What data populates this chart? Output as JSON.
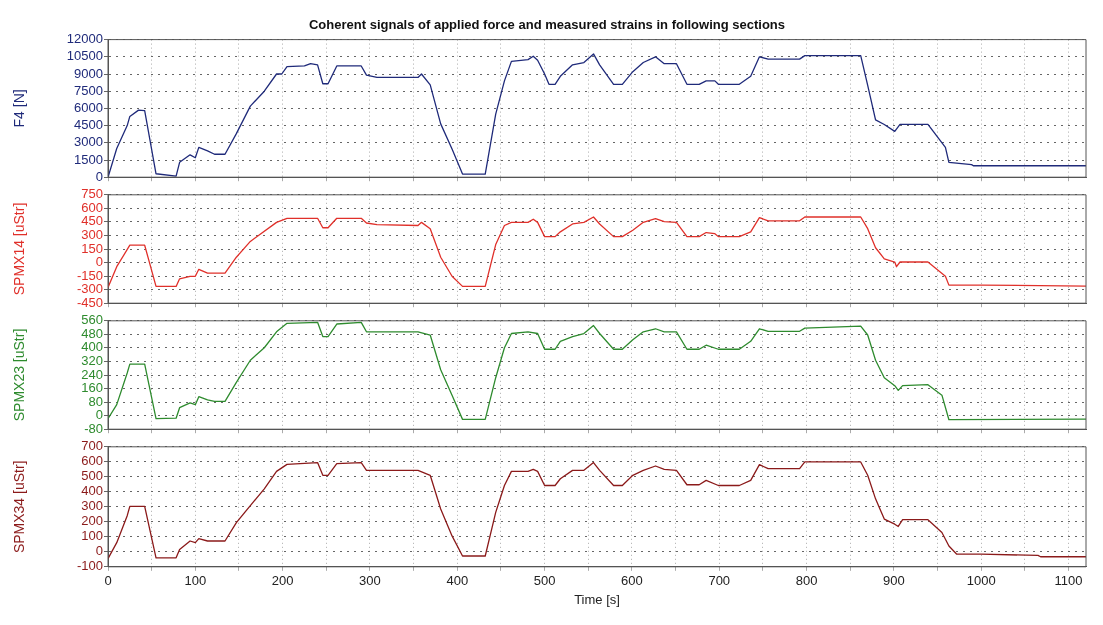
{
  "chart_data": [
    {
      "type": "line",
      "title": "Coherent signals of applied force and measured strains in following sections",
      "ylabel": "F4 [N]",
      "tick_labels": "y",
      "grid": true,
      "marker": "none",
      "x": [
        0,
        10,
        22,
        25,
        35,
        42,
        55,
        78,
        82,
        94,
        100,
        104,
        114,
        122,
        134,
        147,
        163,
        179,
        193,
        199,
        205,
        225,
        232,
        240,
        246,
        252,
        262,
        290,
        296,
        308,
        355,
        359,
        369,
        381,
        394,
        406,
        432,
        444,
        454,
        462,
        481,
        487,
        492,
        500,
        505,
        512,
        518,
        532,
        545,
        556,
        563,
        579,
        589,
        601,
        613,
        627,
        637,
        651,
        663,
        677,
        685,
        695,
        699,
        723,
        736,
        746,
        756,
        792,
        798,
        862,
        870,
        879,
        889,
        901,
        907,
        939,
        959,
        963,
        989,
        991,
        1120
      ],
      "series": [
        {
          "color": "#1f2a7a",
          "values": [
            0,
            2500,
            4500,
            5300,
            5850,
            5800,
            300,
            100,
            1300,
            1950,
            1700,
            2600,
            2300,
            2000,
            2000,
            3800,
            6200,
            7500,
            9000,
            9000,
            9650,
            9700,
            9900,
            9800,
            8150,
            8150,
            9700,
            9700,
            8900,
            8700,
            8700,
            9000,
            8050,
            4650,
            2450,
            270,
            270,
            5500,
            8400,
            10100,
            10250,
            10550,
            10200,
            9000,
            8100,
            8100,
            8800,
            9800,
            10000,
            10750,
            9800,
            8100,
            8100,
            9200,
            10000,
            10500,
            9900,
            9900,
            8100,
            8100,
            8400,
            8400,
            8100,
            8100,
            8800,
            10500,
            10300,
            10300,
            10600,
            10600,
            8000,
            5000,
            4600,
            4000,
            4600,
            4600,
            2600,
            1300,
            1100,
            1000,
            1000
          ]
        }
      ],
      "xlim": [
        0,
        1120
      ],
      "xticks": [
        0,
        {
          "value": 50,
          "label": null
        },
        100,
        {
          "value": 150,
          "label": null
        },
        200,
        {
          "value": 250,
          "label": null
        },
        300,
        {
          "value": 350,
          "label": null
        },
        400,
        {
          "value": 450,
          "label": null
        },
        500,
        {
          "value": 550,
          "label": null
        },
        600,
        {
          "value": 650,
          "label": null
        },
        700,
        {
          "value": 750,
          "label": null
        },
        800,
        {
          "value": 850,
          "label": null
        },
        900,
        {
          "value": 950,
          "label": null
        },
        1000,
        {
          "value": 1050,
          "label": null
        },
        1100
      ],
      "ylim": [
        0,
        12000
      ],
      "yticks": [
        0,
        1500,
        3000,
        4500,
        6000,
        7500,
        9000,
        10500,
        12000
      ]
    },
    {
      "type": "line",
      "ylabel": "SPMX14 [uStr]",
      "tick_labels": "y",
      "grid": true,
      "marker": "none",
      "x": [
        0,
        10,
        25,
        42,
        55,
        78,
        82,
        94,
        100,
        104,
        114,
        134,
        147,
        163,
        193,
        205,
        240,
        246,
        252,
        262,
        290,
        296,
        308,
        355,
        359,
        369,
        381,
        394,
        406,
        432,
        444,
        454,
        462,
        481,
        487,
        492,
        500,
        512,
        518,
        532,
        545,
        556,
        563,
        579,
        589,
        601,
        613,
        627,
        637,
        651,
        663,
        677,
        685,
        695,
        699,
        723,
        736,
        746,
        756,
        792,
        798,
        862,
        870,
        879,
        889,
        901,
        903,
        907,
        939,
        959,
        963,
        1000,
        1120
      ],
      "series": [
        {
          "color": "#e0302a",
          "values": [
            -275,
            -46,
            192,
            192,
            -264,
            -264,
            -180,
            -152,
            -152,
            -75,
            -117,
            -117,
            59,
            234,
            445,
            490,
            490,
            385,
            385,
            490,
            490,
            438,
            420,
            410,
            445,
            375,
            59,
            -152,
            -264,
            -264,
            199,
            410,
            445,
            445,
            480,
            445,
            287,
            287,
            340,
            427,
            445,
            504,
            427,
            287,
            287,
            357,
            445,
            487,
            452,
            445,
            287,
            287,
            332,
            320,
            287,
            287,
            340,
            497,
            462,
            462,
            504,
            504,
            375,
            164,
            41,
            6,
            -46,
            6,
            6,
            -152,
            -250,
            -250,
            -260
          ]
        }
      ],
      "xlim": [
        0,
        1120
      ],
      "xticks": [
        0,
        {
          "value": 50,
          "label": null
        },
        100,
        {
          "value": 150,
          "label": null
        },
        200,
        {
          "value": 250,
          "label": null
        },
        300,
        {
          "value": 350,
          "label": null
        },
        400,
        {
          "value": 450,
          "label": null
        },
        500,
        {
          "value": 550,
          "label": null
        },
        600,
        {
          "value": 650,
          "label": null
        },
        700,
        {
          "value": 750,
          "label": null
        },
        800,
        {
          "value": 850,
          "label": null
        },
        900,
        {
          "value": 950,
          "label": null
        },
        1000,
        {
          "value": 1050,
          "label": null
        },
        1100
      ],
      "ylim": [
        -450,
        750
      ],
      "yticks": [
        -450,
        -300,
        -150,
        0,
        150,
        300,
        450,
        600,
        750
      ]
    },
    {
      "type": "line",
      "ylabel": "SPMX23 [uStr]",
      "tick_labels": "y",
      "grid": true,
      "marker": "none",
      "x": [
        0,
        10,
        22,
        25,
        42,
        55,
        78,
        82,
        94,
        100,
        104,
        114,
        122,
        134,
        147,
        163,
        179,
        193,
        205,
        240,
        246,
        252,
        262,
        290,
        296,
        355,
        369,
        381,
        394,
        406,
        432,
        444,
        454,
        462,
        481,
        492,
        500,
        512,
        518,
        532,
        545,
        556,
        563,
        579,
        589,
        601,
        613,
        627,
        637,
        651,
        663,
        677,
        685,
        699,
        723,
        736,
        746,
        756,
        792,
        798,
        862,
        870,
        879,
        889,
        901,
        905,
        910,
        939,
        955,
        963,
        1120
      ],
      "series": [
        {
          "color": "#2e8b2e",
          "values": [
            -18,
            65,
            252,
            304,
            304,
            -18,
            -15,
            47,
            75,
            65,
            112,
            93,
            84,
            84,
            196,
            327,
            401,
            495,
            545,
            551,
            467,
            467,
            541,
            551,
            495,
            495,
            476,
            271,
            121,
            -22,
            -22,
            224,
            401,
            485,
            495,
            485,
            392,
            392,
            439,
            467,
            485,
            532,
            485,
            392,
            392,
            448,
            495,
            513,
            495,
            495,
            392,
            392,
            416,
            392,
            392,
            439,
            513,
            498,
            498,
            517,
            528,
            476,
            327,
            224,
            177,
            149,
            177,
            183,
            121,
            -24,
            -20
          ]
        }
      ],
      "xlim": [
        0,
        1120
      ],
      "xticks": [
        0,
        {
          "value": 50,
          "label": null
        },
        100,
        {
          "value": 150,
          "label": null
        },
        200,
        {
          "value": 250,
          "label": null
        },
        300,
        {
          "value": 350,
          "label": null
        },
        400,
        {
          "value": 450,
          "label": null
        },
        500,
        {
          "value": 550,
          "label": null
        },
        600,
        {
          "value": 650,
          "label": null
        },
        700,
        {
          "value": 750,
          "label": null
        },
        800,
        {
          "value": 850,
          "label": null
        },
        900,
        {
          "value": 950,
          "label": null
        },
        1000,
        {
          "value": 1050,
          "label": null
        },
        1100
      ],
      "ylim": [
        -80,
        560
      ],
      "yticks": [
        -80,
        0,
        80,
        160,
        240,
        320,
        400,
        480,
        560
      ]
    },
    {
      "type": "line",
      "ylabel": "SPMX34 [uStr]",
      "xlabel": "Time [s]",
      "grid": true,
      "marker": "none",
      "x": [
        0,
        10,
        22,
        25,
        42,
        55,
        78,
        82,
        94,
        100,
        104,
        114,
        134,
        147,
        163,
        179,
        193,
        205,
        240,
        246,
        252,
        262,
        290,
        296,
        355,
        369,
        381,
        394,
        406,
        432,
        444,
        454,
        462,
        481,
        487,
        492,
        500,
        512,
        518,
        532,
        545,
        556,
        563,
        579,
        589,
        601,
        613,
        627,
        637,
        651,
        663,
        677,
        685,
        699,
        723,
        736,
        746,
        756,
        792,
        798,
        862,
        870,
        879,
        889,
        901,
        905,
        910,
        939,
        955,
        963,
        972,
        1000,
        1065,
        1068,
        1120
      ],
      "series": [
        {
          "color": "#8b1a1a",
          "values": [
            -46,
            61,
            241,
            303,
            303,
            -40,
            -40,
            16,
            72,
            61,
            88,
            72,
            72,
            195,
            308,
            420,
            536,
            583,
            595,
            510,
            510,
            588,
            595,
            543,
            543,
            510,
            285,
            106,
            -28,
            -28,
            263,
            442,
            536,
            536,
            550,
            536,
            442,
            442,
            487,
            543,
            543,
            595,
            543,
            442,
            442,
            510,
            543,
            572,
            550,
            543,
            447,
            447,
            476,
            442,
            442,
            476,
            581,
            554,
            554,
            599,
            599,
            510,
            353,
            218,
            184,
            169,
            214,
            214,
            129,
            39,
            -16,
            -16,
            -24,
            -33,
            -33
          ]
        }
      ],
      "xlim": [
        0,
        1120
      ],
      "xticks": [
        0,
        {
          "value": 50,
          "label": null
        },
        100,
        {
          "value": 150,
          "label": null
        },
        200,
        {
          "value": 250,
          "label": null
        },
        300,
        {
          "value": 350,
          "label": null
        },
        400,
        {
          "value": 450,
          "label": null
        },
        500,
        {
          "value": 550,
          "label": null
        },
        600,
        {
          "value": 650,
          "label": null
        },
        700,
        {
          "value": 750,
          "label": null
        },
        800,
        {
          "value": 850,
          "label": null
        },
        900,
        {
          "value": 950,
          "label": null
        },
        1000,
        {
          "value": 1050,
          "label": null
        },
        1100
      ],
      "ylim": [
        -100,
        700
      ],
      "yticks": [
        -100,
        0,
        100,
        200,
        300,
        400,
        500,
        600,
        700
      ]
    }
  ]
}
